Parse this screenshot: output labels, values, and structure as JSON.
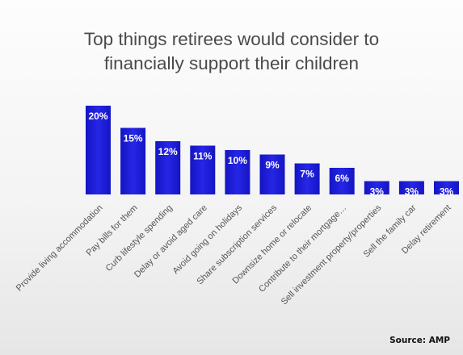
{
  "chart_data": {
    "type": "bar",
    "title_lines": [
      "Top things retirees would consider to",
      "financially support their children"
    ],
    "categories": [
      "Provide living accommodation",
      "Pay bills for them",
      "Curb lifestyle spending",
      "Delay or avoid aged care",
      "Avoid going on holidays",
      "Share subscription services",
      "Downsize home or relocate",
      "Contribute to their mortgage…",
      "Sell investment property/properties",
      "Sell the family car",
      "Delay retirement"
    ],
    "values": [
      20,
      15,
      12,
      11,
      10,
      9,
      7,
      6,
      3,
      3,
      3
    ],
    "value_labels": [
      "20%",
      "15%",
      "12%",
      "11%",
      "10%",
      "9%",
      "7%",
      "6%",
      "3%",
      "3%",
      "3%"
    ],
    "ylim": [
      0,
      20
    ],
    "grid": false,
    "legend": "none",
    "bar_color": "#1f1fd6",
    "value_label_color": "#ffffff"
  },
  "source": "Source: AMP"
}
